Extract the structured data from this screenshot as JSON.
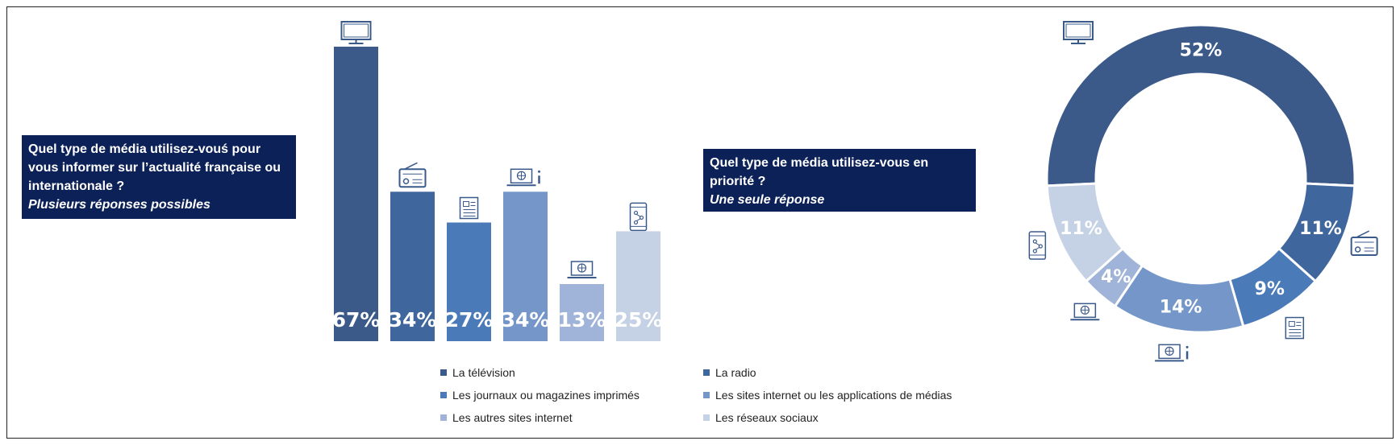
{
  "colors": {
    "television": "#3b5a8a",
    "radio": "#40669e",
    "journaux": "#4b7ab9",
    "sites_medias": "#7496c8",
    "autres_sites": "#9fb4d8",
    "reseaux": "#c5d1e5",
    "question_box": "#0c2157"
  },
  "question1": {
    "text": "Quel type de média utilisez-vouś pour vous informer sur l’actualité française ou internationale ?",
    "subtitle": "Plusieurs réponses possibles"
  },
  "question2": {
    "text": "Quel type de média utilisez-vous en priorité ?",
    "subtitle": "Une seule réponse"
  },
  "legend": [
    {
      "label": "La télévision",
      "color_key": "television"
    },
    {
      "label": "La radio",
      "color_key": "radio"
    },
    {
      "label": "Les journaux ou magazines imprimés",
      "color_key": "journaux"
    },
    {
      "label": "Les sites internet ou les applications de médias",
      "color_key": "sites_medias"
    },
    {
      "label": "Les autres sites internet",
      "color_key": "autres_sites"
    },
    {
      "label": "Les réseaux sociaux",
      "color_key": "reseaux"
    }
  ],
  "chart_data": [
    {
      "type": "bar",
      "categories": [
        "La télévision",
        "La radio",
        "Les journaux ou magazines imprimés",
        "Les sites internet ou les applications de médias",
        "Les autres sites internet",
        "Les réseaux sociaux"
      ],
      "values": [
        67,
        34,
        27,
        34,
        13,
        25
      ],
      "value_labels": [
        "67%",
        "34%",
        "27%",
        "34%",
        "13%",
        "25%"
      ],
      "icons": [
        "tv-icon",
        "radio-icon",
        "newspaper-icon",
        "laptop-info-icon",
        "laptop-globe-icon",
        "phone-share-icon"
      ],
      "ylim": [
        0,
        67
      ],
      "grid": false
    },
    {
      "type": "pie",
      "donut": true,
      "categories": [
        "La télévision",
        "La radio",
        "Les journaux ou magazines imprimés",
        "Les sites internet ou les applications de médias",
        "Les autres sites internet",
        "Les réseaux sociaux"
      ],
      "values": [
        52,
        11,
        9,
        14,
        4,
        11
      ],
      "value_labels": [
        "52%",
        "11%",
        "9%",
        "14%",
        "4%",
        "11%"
      ],
      "icons": [
        "tv-icon",
        "radio-icon",
        "newspaper-icon",
        "laptop-info-icon",
        "laptop-globe-icon",
        "phone-share-icon"
      ]
    }
  ]
}
